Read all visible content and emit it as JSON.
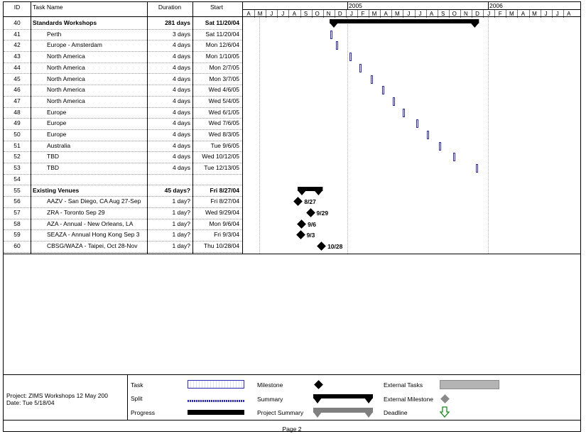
{
  "table": {
    "headers": {
      "id": "ID",
      "name": "Task Name",
      "duration": "Duration",
      "start": "Start"
    },
    "rows": [
      {
        "id": "40",
        "name": "Standards Workshops",
        "duration": "281 days",
        "start": "Sat 11/20/04",
        "bold": true
      },
      {
        "id": "41",
        "name": "Perth",
        "duration": "3 days",
        "start": "Sat 11/20/04"
      },
      {
        "id": "42",
        "name": "Europe - Amsterdam",
        "duration": "4 days",
        "start": "Mon 12/6/04"
      },
      {
        "id": "43",
        "name": "North America",
        "duration": "4 days",
        "start": "Mon 1/10/05"
      },
      {
        "id": "44",
        "name": "North America",
        "duration": "4 days",
        "start": "Mon 2/7/05"
      },
      {
        "id": "45",
        "name": "North America",
        "duration": "4 days",
        "start": "Mon 3/7/05"
      },
      {
        "id": "46",
        "name": "North America",
        "duration": "4 days",
        "start": "Wed 4/6/05"
      },
      {
        "id": "47",
        "name": "North America",
        "duration": "4 days",
        "start": "Wed 5/4/05"
      },
      {
        "id": "48",
        "name": "Europe",
        "duration": "4 days",
        "start": "Wed 6/1/05"
      },
      {
        "id": "49",
        "name": "Europe",
        "duration": "4 days",
        "start": "Wed 7/6/05"
      },
      {
        "id": "50",
        "name": "Europe",
        "duration": "4 days",
        "start": "Wed 8/3/05"
      },
      {
        "id": "51",
        "name": "Australia",
        "duration": "4 days",
        "start": "Tue 9/6/05"
      },
      {
        "id": "52",
        "name": "TBD",
        "duration": "4 days",
        "start": "Wed 10/12/05"
      },
      {
        "id": "53",
        "name": "TBD",
        "duration": "4 days",
        "start": "Tue 12/13/05"
      },
      {
        "id": "54",
        "name": "",
        "duration": "",
        "start": ""
      },
      {
        "id": "55",
        "name": "Existing Venues",
        "duration": "45 days?",
        "start": "Fri 8/27/04",
        "bold": true
      },
      {
        "id": "56",
        "name": "AAZV - San Diego, CA Aug 27-Sep",
        "duration": "1 day?",
        "start": "Fri 8/27/04"
      },
      {
        "id": "57",
        "name": "ZRA - Toronto Sep 29",
        "duration": "1 day?",
        "start": "Wed 9/29/04"
      },
      {
        "id": "58",
        "name": "AZA - Annual - New Orleans, LA",
        "duration": "1 day?",
        "start": "Mon 9/6/04"
      },
      {
        "id": "59",
        "name": "SEAZA - Annual Hong Kong Sep 3",
        "duration": "1 day?",
        "start": "Fri 9/3/04"
      },
      {
        "id": "60",
        "name": "CBSG/WAZA - Taipei, Oct 28-Nov",
        "duration": "1 day?",
        "start": "Thu 10/28/04"
      }
    ]
  },
  "timescale": {
    "years": [
      "2005",
      "2006"
    ],
    "months": [
      "A",
      "M",
      "J",
      "J",
      "A",
      "S",
      "O",
      "N",
      "D",
      "J",
      "F",
      "M",
      "A",
      "M",
      "J",
      "J",
      "A",
      "S",
      "O",
      "N",
      "D",
      "J",
      "F",
      "M",
      "A",
      "M",
      "J",
      "J",
      "A"
    ]
  },
  "gantt": {
    "task_bars": [
      "41",
      "42",
      "43",
      "44",
      "45",
      "46",
      "47",
      "48",
      "49",
      "50",
      "51",
      "52",
      "53"
    ],
    "summary_bars": [
      "40",
      "55"
    ],
    "milestones": [
      {
        "row": "56",
        "label": "8/27"
      },
      {
        "row": "57",
        "label": "9/29"
      },
      {
        "row": "58",
        "label": "9/6"
      },
      {
        "row": "59",
        "label": "9/3"
      },
      {
        "row": "60",
        "label": "10/28"
      }
    ]
  },
  "legend": {
    "project": "Project: ZIMS Workshops 12 May 200",
    "date": "Date: Tue 5/18/04",
    "items": {
      "task": "Task",
      "split": "Split",
      "progress": "Progress",
      "milestone": "Milestone",
      "summary": "Summary",
      "project_summary": "Project Summary",
      "external_tasks": "External Tasks",
      "external_milestone": "External Milestone",
      "deadline": "Deadline"
    }
  },
  "footer": {
    "page": "Page 2"
  },
  "colors": {
    "task_bar_border": "#2b2bb3",
    "external": "#b4b4b4",
    "deadline_arrow": "#1a8a1a"
  }
}
